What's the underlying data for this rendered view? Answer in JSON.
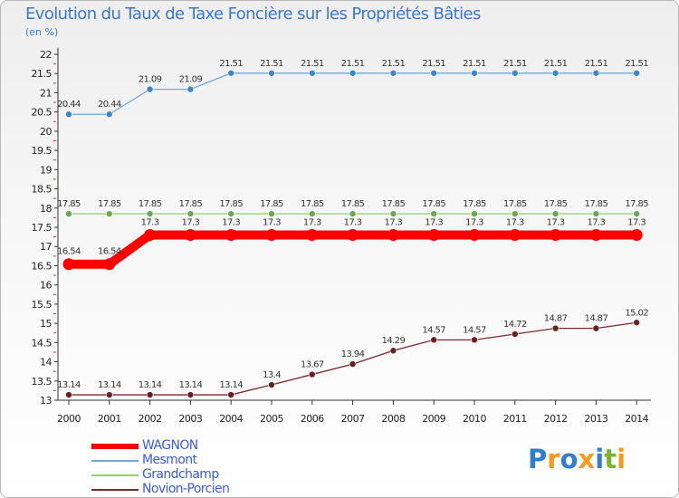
{
  "header": {
    "title": "Evolution du Taux de Taxe Foncière sur les Propriétés Bâties",
    "unit": "(en %)"
  },
  "logo": {
    "text": "Proxiti"
  },
  "colors": {
    "text_blue": "#3a78c9",
    "legend_text": "#3b5bdb"
  },
  "chart_data": {
    "type": "line",
    "title": "Evolution du Taux de Taxe Foncière sur les Propriétés Bâties",
    "ylabel": "(en %)",
    "xlabel": "",
    "x": [
      "2000",
      "2001",
      "2002",
      "2003",
      "2004",
      "2005",
      "2006",
      "2007",
      "2008",
      "2009",
      "2010",
      "2011",
      "2012",
      "2013",
      "2014"
    ],
    "ylim": [
      13,
      22
    ],
    "ytick_step": 0.5,
    "grid": false,
    "legend_position": "bottom-left",
    "series": [
      {
        "name": "WAGNON",
        "color": "#ff0000",
        "marker_color": "#ff0000",
        "emphasis": true,
        "values": [
          16.54,
          16.54,
          17.3,
          17.3,
          17.3,
          17.3,
          17.3,
          17.3,
          17.3,
          17.3,
          17.3,
          17.3,
          17.3,
          17.3,
          17.3
        ],
        "labels": [
          "16.54",
          "16.54",
          "17.3",
          "17.3",
          "17.3",
          "17.3",
          "17.3",
          "17.3",
          "17.3",
          "17.3",
          "17.3",
          "17.3",
          "17.3",
          "17.3",
          "17.3"
        ]
      },
      {
        "name": "Mesmont",
        "color": "#6fa8dc",
        "marker_color": "#3d85c6",
        "emphasis": false,
        "values": [
          20.44,
          20.44,
          21.09,
          21.09,
          21.51,
          21.51,
          21.51,
          21.51,
          21.51,
          21.51,
          21.51,
          21.51,
          21.51,
          21.51,
          21.51
        ],
        "labels": [
          "20.44",
          "20.44",
          "21.09",
          "21.09",
          "21.51",
          "21.51",
          "21.51",
          "21.51",
          "21.51",
          "21.51",
          "21.51",
          "21.51",
          "21.51",
          "21.51",
          "21.51"
        ]
      },
      {
        "name": "Grandchamp",
        "color": "#93d35a",
        "marker_color": "#6aa84f",
        "emphasis": false,
        "values": [
          17.85,
          17.85,
          17.85,
          17.85,
          17.85,
          17.85,
          17.85,
          17.85,
          17.85,
          17.85,
          17.85,
          17.85,
          17.85,
          17.85,
          17.85
        ],
        "labels": [
          "17.85",
          "17.85",
          "17.85",
          "17.85",
          "17.85",
          "17.85",
          "17.85",
          "17.85",
          "17.85",
          "17.85",
          "17.85",
          "17.85",
          "17.85",
          "17.85",
          "17.85"
        ]
      },
      {
        "name": "Novion-Porcien",
        "color": "#7b2a2a",
        "marker_color": "#6b1f1f",
        "emphasis": false,
        "values": [
          13.14,
          13.14,
          13.14,
          13.14,
          13.14,
          13.4,
          13.67,
          13.94,
          14.29,
          14.57,
          14.57,
          14.72,
          14.87,
          14.87,
          15.02
        ],
        "labels": [
          "13.14",
          "13.14",
          "13.14",
          "13.14",
          "13.14",
          "13.4",
          "13.67",
          "13.94",
          "14.29",
          "14.57",
          "14.57",
          "14.72",
          "14.87",
          "14.87",
          "15.02"
        ]
      }
    ]
  }
}
